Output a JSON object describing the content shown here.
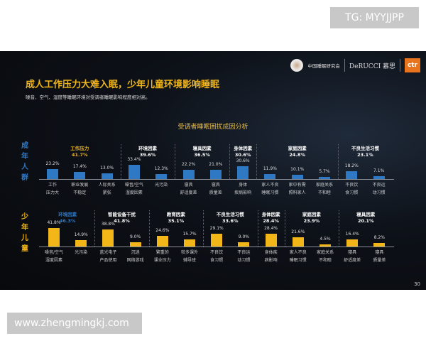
{
  "watermark_top": "TG: MYYJJPP",
  "watermark_bottom": "www.zhengmingkj.com",
  "header": {
    "org": "中国睡眠研究会",
    "brand": "DeRUCCI 慕思",
    "ctr": "ctr"
  },
  "title": "成人工作压力大难入眠，少年儿童环境影响睡眠",
  "subtitle": "噪音、空气、湿度等睡眠环境对受调者睡眠影响程度相对高。",
  "page_number": "30",
  "colors": {
    "adult_bar": "#2f78c4",
    "child_bar": "#f2b619",
    "gold": "#f2b619",
    "blue": "#2f78c4"
  },
  "chart_data": {
    "type": "bar",
    "title": "受调者睡眠困扰成因分析",
    "unit": "%",
    "rows": [
      {
        "name": "成年人群",
        "color": "#2f78c4",
        "groups": [
          {
            "title": "工作压力",
            "value": "41.7%",
            "highlight": true,
            "items": [
              {
                "label": [
                  "工作",
                  "压力大"
                ],
                "value": 23.2
              },
              {
                "label": [
                  "职业发展",
                  "不稳定"
                ],
                "value": 17.4
              },
              {
                "label": [
                  "人际关系",
                  "紧张"
                ],
                "value": 13.0
              }
            ]
          },
          {
            "title": "环境因素",
            "value": "39.6%",
            "items": [
              {
                "label": [
                  "噪音/空气",
                  "湿度因素"
                ],
                "value": 33.4
              },
              {
                "label": [
                  "光污染"
                ],
                "value": 12.3
              }
            ]
          },
          {
            "title": "寝具因素",
            "value": "36.5%",
            "items": [
              {
                "label": [
                  "寝具",
                  "舒适度差"
                ],
                "value": 22.2
              },
              {
                "label": [
                  "寝具",
                  "质量差"
                ],
                "value": 21.0
              }
            ]
          },
          {
            "title": "身体因素",
            "value": "30.6%",
            "items": [
              {
                "label": [
                  "身体",
                  "疾病影响"
                ],
                "value": 30.6
              }
            ]
          },
          {
            "title": "家庭因素",
            "value": "24.8%",
            "items": [
              {
                "label": [
                  "家人不良",
                  "睡眠习惯"
                ],
                "value": 11.9
              },
              {
                "label": [
                  "家中有需",
                  "照料家人"
                ],
                "value": 10.1
              },
              {
                "label": [
                  "家庭关系",
                  "不和睦"
                ],
                "value": 5.7
              }
            ]
          },
          {
            "title": "不良生活习惯",
            "value": "23.1%",
            "items": [
              {
                "label": [
                  "不良饮",
                  "食习惯"
                ],
                "value": 18.2
              },
              {
                "label": [
                  "不良运",
                  "动习惯"
                ],
                "value": 7.1
              }
            ]
          }
        ]
      },
      {
        "name": "少年儿童",
        "color": "#f2b619",
        "groups": [
          {
            "title": "环境因素",
            "value": "46.3%",
            "highlight": true,
            "items": [
              {
                "label": [
                  "噪音/空气",
                  "湿度因素"
                ],
                "value": 41.8
              },
              {
                "label": [
                  "光污染"
                ],
                "value": 14.9
              }
            ]
          },
          {
            "title": "智能设备干扰",
            "value": "41.8%",
            "items": [
              {
                "label": [
                  "蓝光电子",
                  "产品使用"
                ],
                "value": 38.8
              },
              {
                "label": [
                  "沉迷",
                  "网络游戏"
                ],
                "value": 9.0
              }
            ]
          },
          {
            "title": "教育因素",
            "value": "35.1%",
            "items": [
              {
                "label": [
                  "繁重的",
                  "课业压力"
                ],
                "value": 24.6
              },
              {
                "label": [
                  "较多课外",
                  "辅导班"
                ],
                "value": 15.7
              }
            ]
          },
          {
            "title": "不良生活习惯",
            "value": "33.6%",
            "items": [
              {
                "label": [
                  "不良饮",
                  "食习惯"
                ],
                "value": 29.1
              },
              {
                "label": [
                  "不良运",
                  "动习惯"
                ],
                "value": 9.0
              }
            ]
          },
          {
            "title": "身体因素",
            "value": "28.4%",
            "items": [
              {
                "label": [
                  "身体疾",
                  "病影响"
                ],
                "value": 28.4
              }
            ]
          },
          {
            "title": "家庭因素",
            "value": "23.9%",
            "items": [
              {
                "label": [
                  "家人不良",
                  "睡眠习惯"
                ],
                "value": 21.6
              },
              {
                "label": [
                  "家庭关系",
                  "不和睦"
                ],
                "value": 4.5
              }
            ]
          },
          {
            "title": "寝具因素",
            "value": "20.1%",
            "items": [
              {
                "label": [
                  "寝具",
                  "舒适度差"
                ],
                "value": 16.4
              },
              {
                "label": [
                  "寝具",
                  "质量差"
                ],
                "value": 8.2
              }
            ]
          }
        ]
      }
    ]
  }
}
